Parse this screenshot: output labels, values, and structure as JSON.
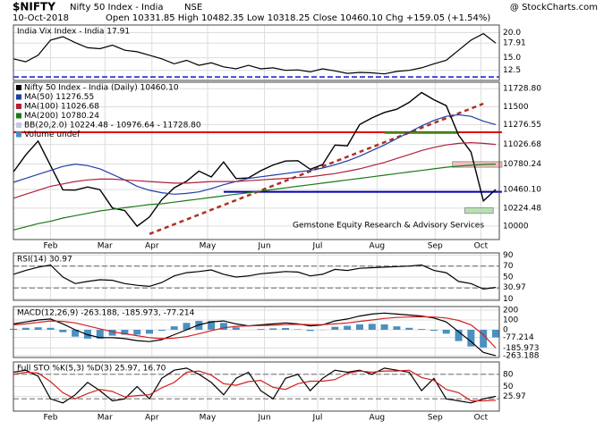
{
  "header": {
    "symbol": "$NIFTY",
    "name": "Nifty 50 Index - India",
    "exchange": "NSE",
    "date": "10-Oct-2018",
    "quote": "Open 10331.85  High 10482.35  Low 10318.25  Close 10460.10  Chg +159.05 (+1.54%)",
    "source": "@ StockCharts.com"
  },
  "chart_data": [
    {
      "type": "line",
      "title": "India Vix Index - India 17.91",
      "xlim": [
        0,
        39
      ],
      "ylim": [
        10.5,
        21.5
      ],
      "yticks": [
        {
          "value": 20,
          "label": "20.0"
        },
        17.91,
        {
          "value": 15,
          "label": "15.0"
        },
        12.5
      ],
      "ref_lines": [
        {
          "value": 11.2,
          "color": "#0000cc"
        }
      ],
      "series": [
        {
          "name": "India Vix Index - India",
          "color": "#000000",
          "values": [
            14.8,
            14.2,
            15.5,
            18.5,
            19.2,
            18.0,
            17.0,
            16.8,
            17.5,
            16.5,
            16.2,
            15.5,
            14.8,
            13.8,
            14.5,
            13.5,
            14.0,
            13.2,
            12.8,
            13.5,
            12.8,
            13.0,
            12.5,
            12.6,
            12.2,
            12.8,
            12.4,
            11.9,
            12.1,
            12.0,
            11.8,
            12.3,
            12.5,
            13.0,
            13.8,
            14.5,
            16.5,
            18.5,
            19.8,
            17.91
          ]
        }
      ]
    },
    {
      "type": "line",
      "xlim": [
        0,
        39
      ],
      "ylim": [
        9830,
        11810
      ],
      "yticks": [
        {
          "value": 11728.8,
          "label": "11728.80"
        },
        11500,
        11276.55,
        11026.68,
        10780.24,
        {
          "value": 10460.1,
          "label": "10460.10"
        },
        10224.48,
        10000
      ],
      "xticks": [
        {
          "value": 3,
          "label": "Feb"
        },
        {
          "value": 7.4,
          "label": "Mar"
        },
        {
          "value": 11.2,
          "label": "Apr"
        },
        {
          "value": 15.7,
          "label": "May"
        },
        {
          "value": 20.3,
          "label": "Jun"
        },
        {
          "value": 24.6,
          "label": "Jul"
        },
        {
          "value": 29.4,
          "label": "Aug"
        },
        {
          "value": 34.1,
          "label": "Sep"
        },
        {
          "value": 37.8,
          "label": "Oct"
        }
      ],
      "series": [
        {
          "name": "Nifty 50 Index - India (Daily) 10460.10",
          "color": "#000000",
          "values": [
            10681,
            10895,
            11070,
            10760,
            10455,
            10452,
            10491,
            10458,
            10227,
            10195,
            9998,
            10114,
            10332,
            10481,
            10564,
            10692,
            10618,
            10807,
            10597,
            10605,
            10696,
            10768,
            10818,
            10822,
            10714,
            10773,
            11019,
            11010,
            11278,
            11361,
            11430,
            11470,
            11557,
            11681,
            11589,
            11515,
            11143,
            10930,
            10316,
            10460
          ]
        },
        {
          "name": "MA(50) 11276.55",
          "color": "#1f3fa8",
          "values": [
            10550,
            10600,
            10650,
            10700,
            10750,
            10780,
            10760,
            10720,
            10650,
            10580,
            10500,
            10450,
            10420,
            10400,
            10410,
            10430,
            10470,
            10520,
            10560,
            10600,
            10620,
            10640,
            10660,
            10680,
            10700,
            10730,
            10770,
            10820,
            10880,
            10950,
            11020,
            11100,
            11180,
            11260,
            11330,
            11380,
            11400,
            11380,
            11320,
            11277
          ]
        },
        {
          "name": "MA(100) 11026.68",
          "color": "#b0203a",
          "values": [
            10350,
            10400,
            10450,
            10500,
            10530,
            10560,
            10580,
            10590,
            10590,
            10580,
            10570,
            10560,
            10550,
            10540,
            10540,
            10550,
            10560,
            10560,
            10560,
            10570,
            10580,
            10590,
            10600,
            10610,
            10620,
            10640,
            10660,
            10690,
            10720,
            10760,
            10800,
            10850,
            10900,
            10950,
            10990,
            11020,
            11040,
            11050,
            11040,
            11027
          ]
        },
        {
          "name": "MA(200) 10780.24",
          "color": "#1a7a1a",
          "values": [
            9950,
            9990,
            10030,
            10060,
            10100,
            10130,
            10160,
            10190,
            10210,
            10230,
            10250,
            10270,
            10280,
            10300,
            10320,
            10340,
            10360,
            10380,
            10400,
            10420,
            10440,
            10460,
            10480,
            10500,
            10520,
            10540,
            10560,
            10580,
            10600,
            10620,
            10640,
            10660,
            10680,
            10700,
            10720,
            10740,
            10755,
            10765,
            10775,
            10780
          ]
        }
      ],
      "legend_extra": [
        "BB(20,2.0) 10224.48 - 10976.64 - 11728.80",
        "Volume undef"
      ],
      "hlines": [
        {
          "value": 11180,
          "color": "#e00000",
          "x": [
            0,
            39.5
          ]
        },
        {
          "value": 11170,
          "color": "#22aa22",
          "x": [
            30,
            36
          ]
        },
        {
          "value": 10430,
          "color": "#0000aa",
          "x": [
            17,
            39.5
          ]
        }
      ],
      "trendline": {
        "x": [
          11,
          38
        ],
        "y": [
          9900,
          11540
        ],
        "color": "#b03020"
      },
      "boxes": [
        {
          "x": [
            35.5,
            39.5
          ],
          "y": [
            10740,
            10810
          ],
          "color": "#f4b0b0"
        },
        {
          "x": [
            36.5,
            38.8
          ],
          "y": [
            10160,
            10230
          ],
          "color": "#a8d8a0"
        }
      ],
      "annotation": "Gemstone Equity Research & Advisory Services"
    },
    {
      "type": "line",
      "title": "RSI(14) 30.97",
      "xlim": [
        0,
        39
      ],
      "ylim": [
        7.5,
        94
      ],
      "yticks": [
        90,
        70,
        50,
        30.97,
        10
      ],
      "ref_lines": [
        {
          "value": 70,
          "color": "#888888"
        },
        {
          "value": 30,
          "color": "#888888"
        }
      ],
      "series": [
        {
          "name": "RSI(14)",
          "color": "#000000",
          "values": [
            55,
            62,
            68,
            72,
            50,
            38,
            42,
            45,
            44,
            38,
            35,
            33,
            40,
            52,
            58,
            60,
            63,
            55,
            50,
            52,
            56,
            58,
            60,
            59,
            52,
            55,
            64,
            62,
            66,
            67,
            68,
            69,
            70,
            72,
            62,
            58,
            42,
            38,
            28,
            30.97
          ]
        }
      ]
    },
    {
      "type": "line",
      "title": "MACD(12,26,9) -263.188, -185.973, -77.214",
      "xlim": [
        0,
        39
      ],
      "ylim": [
        -282,
        236
      ],
      "yticks": [
        200,
        100,
        0,
        -77.214,
        -185.973,
        -263.188
      ],
      "series": [
        {
          "name": "Histogram",
          "kind": "bar",
          "color": "#4a90c0",
          "values": [
            10,
            20,
            25,
            20,
            -25,
            -70,
            -90,
            -90,
            -60,
            -50,
            -50,
            -40,
            -10,
            35,
            70,
            90,
            90,
            70,
            25,
            0,
            8,
            14,
            18,
            5,
            -12,
            -2,
            30,
            40,
            55,
            60,
            55,
            35,
            20,
            8,
            -10,
            -40,
            -115,
            -170,
            -180,
            -77.214
          ]
        },
        {
          "name": "MACD",
          "color": "#000000",
          "values": [
            60,
            80,
            100,
            110,
            60,
            0,
            -50,
            -80,
            -80,
            -90,
            -110,
            -120,
            -100,
            -50,
            0,
            50,
            80,
            90,
            60,
            40,
            50,
            60,
            70,
            60,
            40,
            50,
            90,
            110,
            140,
            160,
            170,
            160,
            150,
            140,
            120,
            80,
            -20,
            -120,
            -230,
            -263.188
          ]
        },
        {
          "name": "Signal",
          "color": "#d02020",
          "values": [
            50,
            60,
            75,
            90,
            85,
            70,
            40,
            10,
            -20,
            -40,
            -60,
            -80,
            -90,
            -85,
            -70,
            -40,
            -10,
            20,
            35,
            40,
            42,
            46,
            52,
            55,
            52,
            52,
            60,
            70,
            85,
            100,
            115,
            125,
            130,
            132,
            130,
            120,
            95,
            50,
            -50,
            -185.973
          ]
        }
      ]
    },
    {
      "type": "line",
      "title": "Full STO %K(5,3) %D(3) 25.97, 16.70",
      "xlim": [
        0,
        39
      ],
      "ylim": [
        -10,
        110
      ],
      "yticks": [
        80,
        50,
        25.97
      ],
      "ref_lines": [
        {
          "value": 80,
          "color": "#888888"
        },
        {
          "value": 20,
          "color": "#888888"
        }
      ],
      "xticks": [
        {
          "value": 3,
          "label": "Feb"
        },
        {
          "value": 7.4,
          "label": "Mar"
        },
        {
          "value": 11.2,
          "label": "Apr"
        },
        {
          "value": 15.7,
          "label": "May"
        },
        {
          "value": 20.3,
          "label": "Jun"
        },
        {
          "value": 24.6,
          "label": "Jul"
        },
        {
          "value": 29.4,
          "label": "Aug"
        },
        {
          "value": 34.1,
          "label": "Sep"
        },
        {
          "value": 37.8,
          "label": "Oct"
        }
      ],
      "series": [
        {
          "name": "%K",
          "color": "#000000",
          "values": [
            85,
            90,
            75,
            20,
            10,
            30,
            60,
            40,
            15,
            20,
            50,
            20,
            70,
            90,
            95,
            80,
            60,
            30,
            70,
            85,
            40,
            20,
            70,
            80,
            40,
            70,
            90,
            85,
            90,
            80,
            95,
            90,
            85,
            40,
            70,
            20,
            15,
            10,
            20,
            25.97
          ]
        },
        {
          "name": "%D",
          "color": "#d02020",
          "values": [
            80,
            85,
            83,
            62,
            35,
            20,
            33,
            43,
            38,
            25,
            28,
            30,
            47,
            60,
            85,
            88,
            78,
            57,
            53,
            62,
            65,
            48,
            43,
            57,
            63,
            63,
            67,
            82,
            88,
            85,
            88,
            88,
            90,
            72,
            65,
            43,
            35,
            15,
            15,
            16.7
          ]
        }
      ]
    }
  ]
}
